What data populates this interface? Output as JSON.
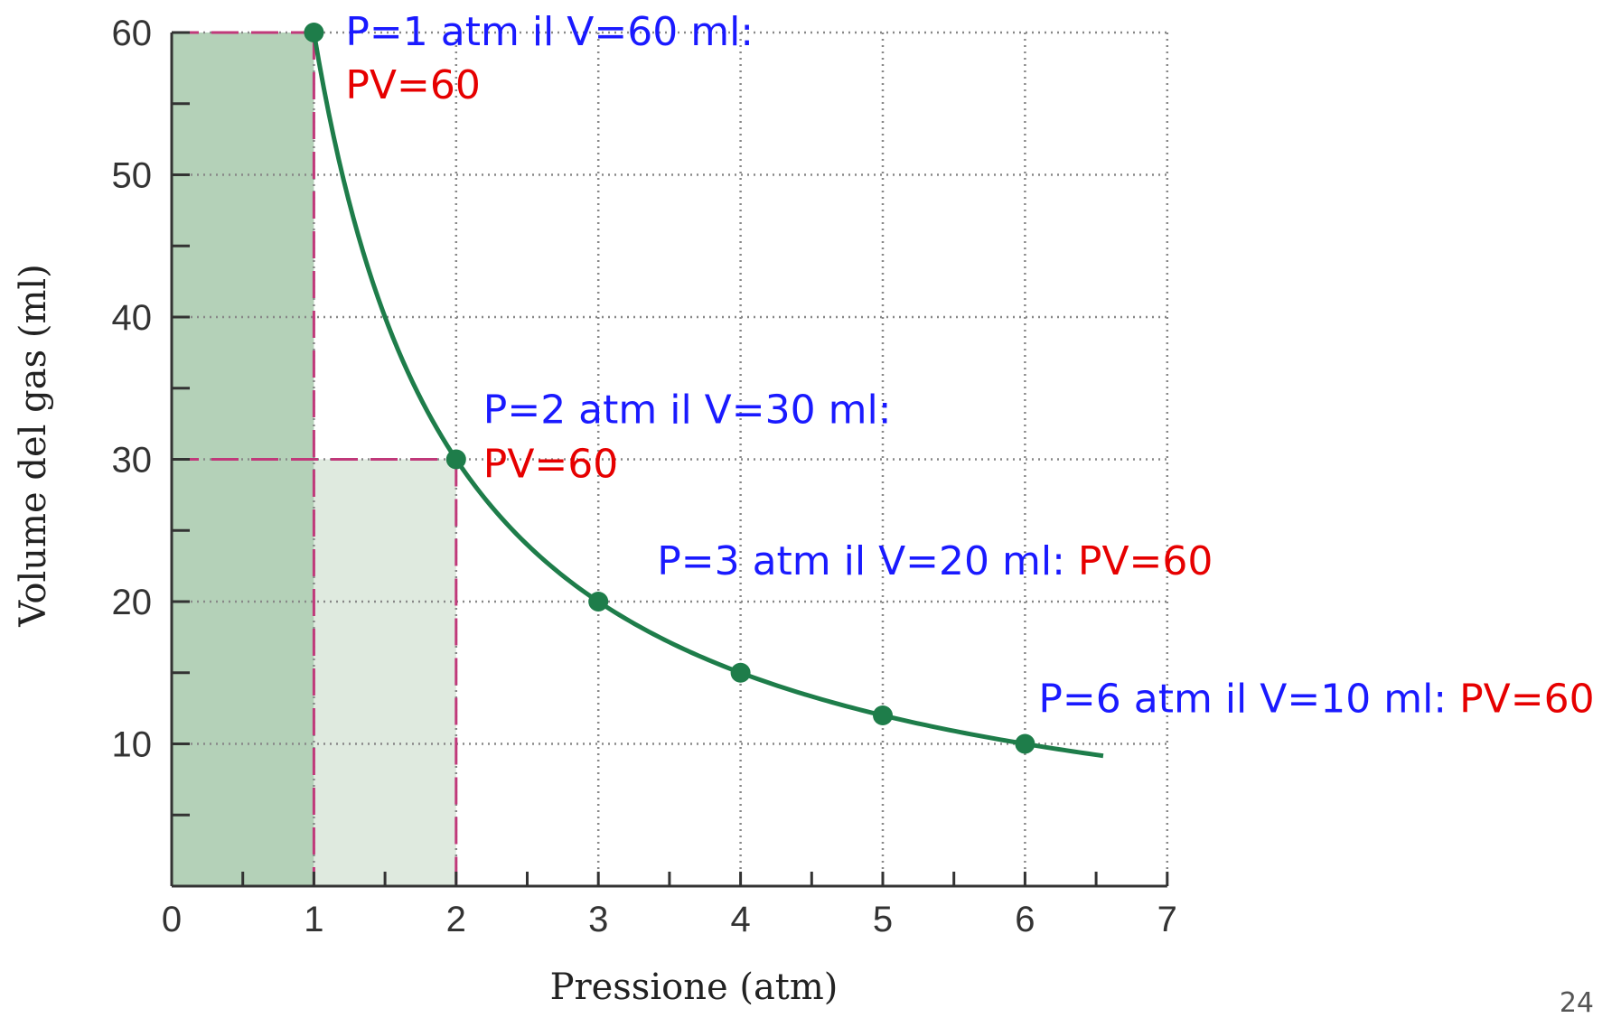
{
  "chart_data": {
    "type": "line",
    "title": "",
    "xlabel": "Pressione (atm)",
    "ylabel": "Volume del gas (ml)",
    "xlim": [
      0,
      7
    ],
    "ylim": [
      0,
      60
    ],
    "x_ticks": [
      0,
      1,
      2,
      3,
      4,
      5,
      6,
      7
    ],
    "y_ticks": [
      10,
      20,
      30,
      40,
      50,
      60
    ],
    "grid": true,
    "curve": {
      "relation": "V = 60 / P",
      "x_start": 1,
      "x_end": 6.55
    },
    "series": [
      {
        "points": [
          {
            "x": 1,
            "y": 60
          },
          {
            "x": 2,
            "y": 30
          },
          {
            "x": 3,
            "y": 20
          },
          {
            "x": 4,
            "y": 15
          },
          {
            "x": 5,
            "y": 12
          },
          {
            "x": 6,
            "y": 10
          }
        ]
      }
    ],
    "shaded_regions": [
      {
        "x": [
          0,
          1
        ],
        "y": [
          0,
          60
        ],
        "color": "#b4d1b8"
      },
      {
        "x": [
          1,
          2
        ],
        "y": [
          0,
          30
        ],
        "color": "#dfeadf"
      }
    ],
    "annotations": [
      {
        "blue": "P=1 atm  il V=60 ml:",
        "red": "PV=60",
        "layout": "stacked",
        "at": {
          "x": 1,
          "y": 60
        }
      },
      {
        "blue": "P=2 atm  il V=30 ml:",
        "red": "PV=60",
        "layout": "stacked",
        "at": {
          "x": 2,
          "y": 30
        }
      },
      {
        "blue": "P=3 atm  il V=20 ml:",
        "red": "PV=60",
        "layout": "inline",
        "at": {
          "x": 3,
          "y": 20
        }
      },
      {
        "blue": "P=6 atm  il V=10 ml:",
        "red": "PV=60",
        "layout": "inline",
        "at": {
          "x": 6,
          "y": 10
        }
      }
    ],
    "colors": {
      "curve": "#1e7d4a",
      "points": "#1e7d4a",
      "guide_lines": "#c0397a",
      "annotation_blue": "#1a1aff",
      "annotation_red": "#e60000",
      "grid": "#888888"
    }
  },
  "page_number": "24"
}
